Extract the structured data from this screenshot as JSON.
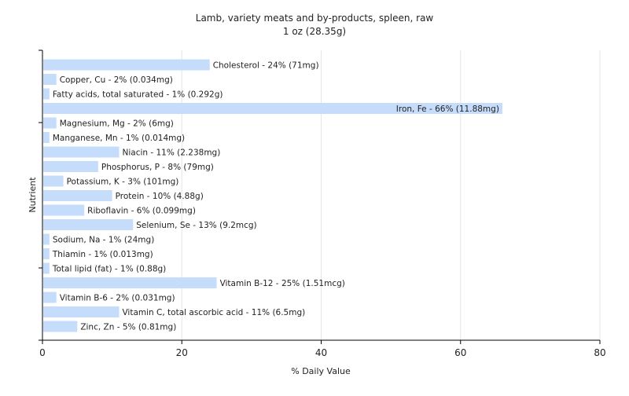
{
  "chart_data": {
    "type": "bar",
    "orientation": "horizontal",
    "title": "Lamb, variety meats and by-products, spleen, raw",
    "subtitle": "1 oz (28.35g)",
    "xlabel": "% Daily Value",
    "ylabel": "Nutrient",
    "xlim": [
      0,
      80
    ],
    "xticks": [
      0,
      20,
      40,
      60,
      80
    ],
    "grid": "vertical",
    "bar_color": "#c6dcfb",
    "grid_color": "#e6e6e6",
    "categories": [
      "Cholesterol",
      "Copper, Cu",
      "Fatty acids, total saturated",
      "Iron, Fe",
      "Magnesium, Mg",
      "Manganese, Mn",
      "Niacin",
      "Phosphorus, P",
      "Potassium, K",
      "Protein",
      "Riboflavin",
      "Selenium, Se",
      "Sodium, Na",
      "Thiamin",
      "Total lipid (fat)",
      "Vitamin B-12",
      "Vitamin B-6",
      "Vitamin C, total ascorbic acid",
      "Zinc, Zn"
    ],
    "values": [
      24,
      2,
      1,
      66,
      2,
      1,
      11,
      8,
      3,
      10,
      6,
      13,
      1,
      1,
      1,
      25,
      2,
      11,
      5
    ],
    "labels": [
      "Cholesterol - 24% (71mg)",
      "Copper, Cu - 2% (0.034mg)",
      "Fatty acids, total saturated - 1% (0.292g)",
      "Iron, Fe - 66% (11.88mg)",
      "Magnesium, Mg - 2% (6mg)",
      "Manganese, Mn - 1% (0.014mg)",
      "Niacin - 11% (2.238mg)",
      "Phosphorus, P - 8% (79mg)",
      "Potassium, K - 3% (101mg)",
      "Protein - 10% (4.88g)",
      "Riboflavin - 6% (0.099mg)",
      "Selenium, Se - 13% (9.2mcg)",
      "Sodium, Na - 1% (24mg)",
      "Thiamin - 1% (0.013mg)",
      "Total lipid (fat) - 1% (0.88g)",
      "Vitamin B-12 - 25% (1.51mcg)",
      "Vitamin B-6 - 2% (0.031mg)",
      "Vitamin C, total ascorbic acid - 11% (6.5mg)",
      "Zinc, Zn - 5% (0.81mg)"
    ]
  }
}
